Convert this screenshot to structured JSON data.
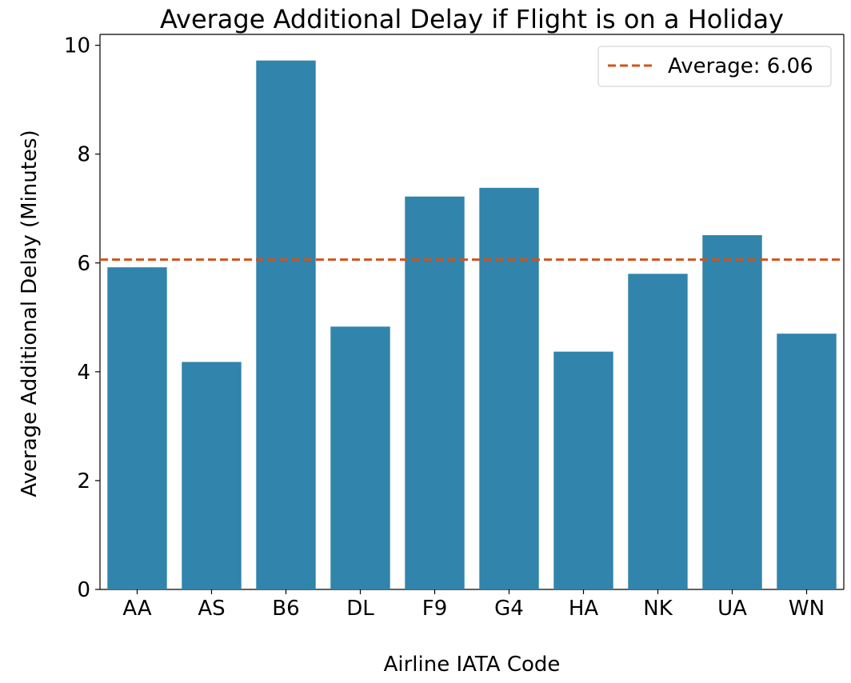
{
  "chart_data": {
    "type": "bar",
    "title": "Average Additional Delay if Flight is on a Holiday",
    "xlabel": "Airline IATA Code",
    "ylabel": "Average Additional Delay (Minutes)",
    "categories": [
      "AA",
      "AS",
      "B6",
      "DL",
      "F9",
      "G4",
      "HA",
      "NK",
      "UA",
      "WN"
    ],
    "values": [
      5.92,
      4.18,
      9.72,
      4.83,
      7.22,
      7.38,
      4.37,
      5.8,
      6.51,
      4.7
    ],
    "ylim": [
      0,
      10.2
    ],
    "yticks": [
      0,
      2,
      4,
      6,
      8,
      10
    ],
    "ytick_labels": [
      "0",
      "2",
      "4",
      "6",
      "8",
      "10"
    ],
    "grid": false,
    "bar_color": "#3184AB",
    "reference_line": {
      "value": 6.06,
      "label": "Average: 6.06",
      "color": "#D0541C",
      "style": "dashed"
    },
    "legend_position": "top-right"
  }
}
